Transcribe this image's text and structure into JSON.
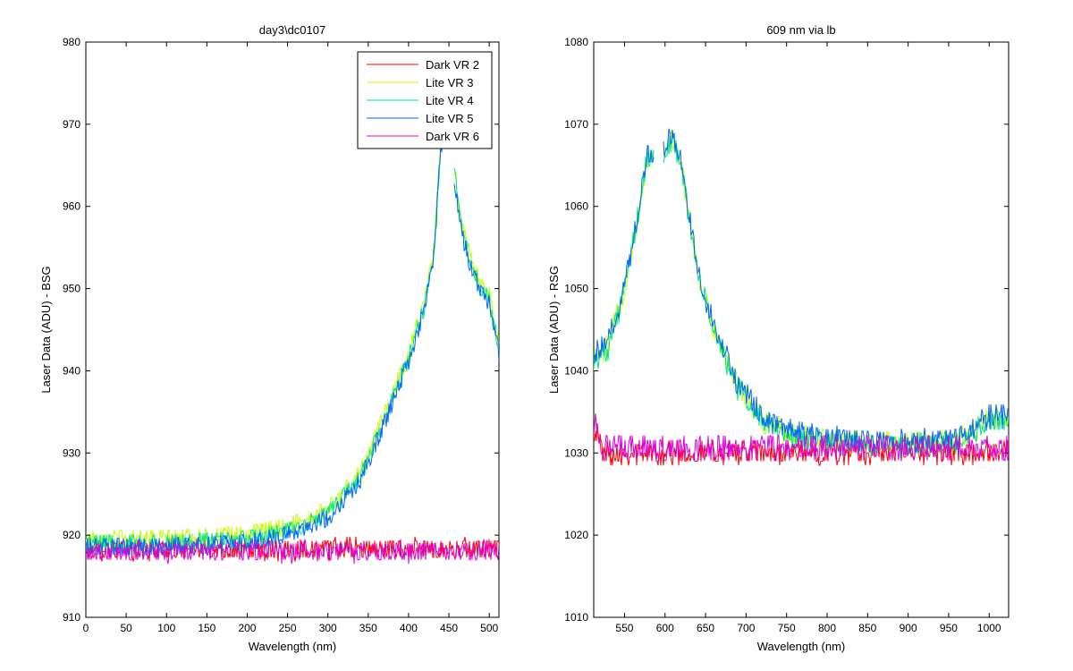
{
  "chart_data": [
    {
      "type": "line",
      "title": "day3\\dc0107",
      "xlabel": "Wavelength (nm)",
      "ylabel": "Laser Data (ADU) - BSG",
      "xlim": [
        0,
        512
      ],
      "ylim": [
        910,
        980
      ],
      "xticks": [
        0,
        50,
        100,
        150,
        200,
        250,
        300,
        350,
        400,
        450,
        500
      ],
      "yticks": [
        910,
        920,
        930,
        940,
        950,
        960,
        970,
        980
      ],
      "legend_position": "top-right",
      "grid": false,
      "series": [
        {
          "name": "Dark VR 2",
          "color": "#ff0000",
          "profile": "flat",
          "baseline": 918.3,
          "noise": 1.3
        },
        {
          "name": "Lite VR 3",
          "color": "#c8ff00",
          "profile": "peak",
          "baseline": 919.6,
          "noise": 1.2
        },
        {
          "name": "Lite VR 4",
          "color": "#00e87a",
          "profile": "peak",
          "baseline": 919.0,
          "noise": 1.2
        },
        {
          "name": "Lite VR 5",
          "color": "#0066ff",
          "profile": "peak",
          "baseline": 918.6,
          "noise": 1.2
        },
        {
          "name": "Dark VR 6",
          "color": "#dd00dd",
          "profile": "flat",
          "baseline": 918.0,
          "noise": 1.3
        }
      ],
      "peak_profile": {
        "x": [
          0,
          100,
          200,
          250,
          300,
          340,
          370,
          400,
          420,
          432,
          440,
          452,
          458,
          466,
          480,
          500,
          512
        ],
        "y": [
          919,
          919,
          919.5,
          920.5,
          922.5,
          927,
          934,
          941.5,
          948,
          955,
          968,
          968,
          963,
          957,
          952,
          948.5,
          942.5
        ]
      },
      "gaps": [
        [
          444,
          456
        ]
      ]
    },
    {
      "type": "line",
      "title": "609 nm via lb",
      "xlabel": "Wavelength (nm)",
      "ylabel": "Laser Data (ADU) - RSG",
      "xlim": [
        512,
        1024
      ],
      "ylim": [
        1010,
        1080
      ],
      "xticks": [
        550,
        600,
        650,
        700,
        750,
        800,
        850,
        900,
        950,
        1000
      ],
      "yticks": [
        1010,
        1020,
        1030,
        1040,
        1050,
        1060,
        1070,
        1080
      ],
      "grid": false,
      "series": [
        {
          "color": "#ff0000",
          "profile": "flat",
          "baseline": 1030.0,
          "noise": 1.4
        },
        {
          "color": "#c8ff00",
          "profile": "peak",
          "baseline": 1031.2,
          "noise": 1.4
        },
        {
          "color": "#00e87a",
          "profile": "peak",
          "baseline": 1031.0,
          "noise": 1.4
        },
        {
          "color": "#0066ff",
          "profile": "peak",
          "baseline": 1031.6,
          "noise": 1.4
        },
        {
          "color": "#dd00dd",
          "profile": "flat",
          "baseline": 1030.6,
          "noise": 1.6
        }
      ],
      "peak_profile": {
        "x": [
          512,
          530,
          550,
          565,
          578,
          585,
          598,
          610,
          622,
          640,
          660,
          690,
          720,
          760,
          800,
          900,
          960,
          1000,
          1024
        ],
        "y": [
          1041.5,
          1043,
          1050,
          1058,
          1066,
          1066,
          1067,
          1068,
          1064,
          1052,
          1045,
          1038,
          1034,
          1032,
          1031.5,
          1031,
          1031.5,
          1034,
          1034
        ]
      },
      "gaps": [
        [
          586,
          598
        ]
      ]
    }
  ]
}
